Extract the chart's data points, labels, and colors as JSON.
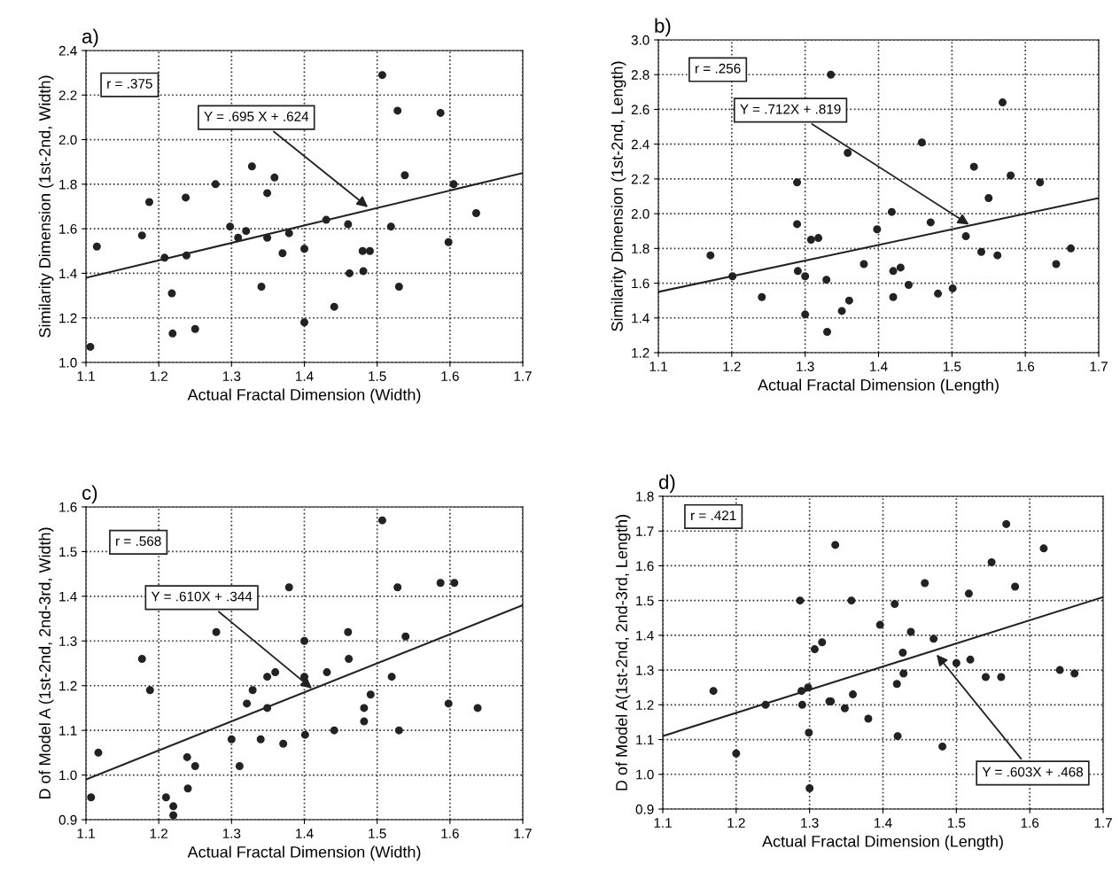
{
  "chart_data": [
    {
      "type": "scatter",
      "title": "a)",
      "xlabel": "Actual Fractal Dimension (Width)",
      "ylabel": "Similarity Dimension (1st-2nd, Width)",
      "xlim": [
        1.1,
        1.7
      ],
      "xticks": [
        1.1,
        1.2,
        1.3,
        1.4,
        1.5,
        1.6,
        1.7
      ],
      "ylim": [
        1.0,
        2.4
      ],
      "yticks": [
        {
          "value": 1.0,
          "label": "1.0"
        },
        1.2,
        1.4,
        1.6,
        1.8,
        {
          "value": 2.0,
          "label": "2.0"
        },
        2.2,
        2.4
      ],
      "grid": true,
      "series": [
        {
          "marker": "circle",
          "color": "#222222",
          "x": [
            1.106,
            1.115,
            1.177,
            1.187,
            1.208,
            1.218,
            1.219,
            1.238,
            1.237,
            1.25,
            1.278,
            1.298,
            1.309,
            1.32,
            1.328,
            1.341,
            1.349,
            1.349,
            1.359,
            1.37,
            1.379,
            1.4,
            1.4,
            1.43,
            1.441,
            1.46,
            1.462,
            1.48,
            1.49,
            1.481,
            1.507,
            1.519,
            1.528,
            1.53,
            1.538,
            1.587,
            1.598,
            1.605,
            1.636
          ],
          "values": [
            1.07,
            1.52,
            1.57,
            1.72,
            1.47,
            1.31,
            1.13,
            1.48,
            1.74,
            1.15,
            1.8,
            1.61,
            1.56,
            1.59,
            1.88,
            1.34,
            1.76,
            1.56,
            1.83,
            1.49,
            1.58,
            1.51,
            1.18,
            1.64,
            1.25,
            1.62,
            1.4,
            1.5,
            1.5,
            1.41,
            2.29,
            1.61,
            2.13,
            1.34,
            1.84,
            2.12,
            1.54,
            1.8,
            1.67
          ]
        },
        {
          "type": "line",
          "color": "#222222",
          "line_style": "solid",
          "x": [
            1.1,
            1.7
          ],
          "values": [
            1.38,
            1.85
          ]
        }
      ],
      "annotations": [
        "r = .375",
        {
          "text": "Y = .695 X + .624",
          "x": 1.49,
          "y": 1.69
        }
      ]
    },
    {
      "type": "scatter",
      "title": "b)",
      "xlabel": "Actual Fractal Dimension (Length)",
      "ylabel": "Similarity Dimension (1st-2nd, Length)",
      "xlim": [
        1.1,
        1.7
      ],
      "xticks": [
        1.1,
        1.2,
        1.3,
        1.4,
        1.5,
        1.6,
        1.7
      ],
      "ylim": [
        1.2,
        3.0
      ],
      "yticks": [
        1.2,
        1.4,
        1.6,
        1.8,
        {
          "value": 2.0,
          "label": "2.0"
        },
        2.2,
        2.4,
        2.6,
        2.8,
        {
          "value": 3.0,
          "label": "3.0"
        }
      ],
      "grid": true,
      "series": [
        {
          "marker": "circle",
          "color": "#222222",
          "x": [
            1.171,
            1.201,
            1.241,
            1.289,
            1.289,
            1.29,
            1.3,
            1.3,
            1.308,
            1.318,
            1.329,
            1.33,
            1.335,
            1.35,
            1.358,
            1.36,
            1.38,
            1.398,
            1.418,
            1.42,
            1.43,
            1.42,
            1.441,
            1.459,
            1.471,
            1.481,
            1.501,
            1.519,
            1.53,
            1.54,
            1.55,
            1.562,
            1.569,
            1.58,
            1.62,
            1.642,
            1.662
          ],
          "values": [
            1.76,
            1.64,
            1.52,
            2.18,
            1.94,
            1.67,
            1.64,
            1.42,
            1.85,
            1.86,
            1.62,
            1.32,
            2.8,
            1.44,
            2.35,
            1.5,
            1.71,
            1.91,
            2.01,
            1.67,
            1.69,
            1.52,
            1.59,
            2.41,
            1.95,
            1.54,
            1.57,
            1.87,
            2.27,
            1.78,
            2.09,
            1.76,
            2.64,
            2.22,
            2.18,
            1.71,
            1.8
          ]
        },
        {
          "type": "line",
          "color": "#222222",
          "line_style": "solid",
          "x": [
            1.1,
            1.7
          ],
          "values": [
            1.55,
            2.09
          ]
        }
      ],
      "annotations": [
        "r = .256",
        {
          "text": "Y = .712X + .819",
          "x": 1.526,
          "y": 1.93
        }
      ]
    },
    {
      "type": "scatter",
      "title": "c)",
      "xlabel": "Actual Fractal Dimension (Width)",
      "ylabel": "D of Model A (1st-2nd, 2nd-3rd, Width)",
      "xlim": [
        1.1,
        1.7
      ],
      "xticks": [
        1.1,
        1.2,
        1.3,
        1.4,
        1.5,
        1.6,
        1.7
      ],
      "ylim": [
        0.9,
        1.6
      ],
      "yticks": [
        0.9,
        {
          "value": 1.0,
          "label": "1.0"
        },
        1.1,
        1.2,
        1.3,
        1.4,
        1.5,
        1.6
      ],
      "grid": true,
      "series": [
        {
          "marker": "circle",
          "color": "#222222",
          "x": [
            1.107,
            1.117,
            1.177,
            1.188,
            1.21,
            1.22,
            1.22,
            1.239,
            1.24,
            1.25,
            1.279,
            1.3,
            1.311,
            1.321,
            1.329,
            1.34,
            1.349,
            1.349,
            1.36,
            1.371,
            1.379,
            1.4,
            1.4,
            1.401,
            1.431,
            1.441,
            1.46,
            1.461,
            1.482,
            1.482,
            1.491,
            1.507,
            1.52,
            1.528,
            1.53,
            1.539,
            1.587,
            1.606,
            1.598,
            1.638
          ],
          "values": [
            0.95,
            1.05,
            1.26,
            1.19,
            0.95,
            0.93,
            0.91,
            1.04,
            0.97,
            1.02,
            1.32,
            1.08,
            1.02,
            1.16,
            1.19,
            1.08,
            1.22,
            1.15,
            1.23,
            1.07,
            1.42,
            1.3,
            1.22,
            1.09,
            1.23,
            1.1,
            1.32,
            1.26,
            1.15,
            1.12,
            1.18,
            1.57,
            1.22,
            1.42,
            1.1,
            1.31,
            1.43,
            1.43,
            1.16,
            1.15
          ]
        },
        {
          "type": "line",
          "color": "#222222",
          "line_style": "solid",
          "x": [
            1.1,
            1.7
          ],
          "values": [
            0.99,
            1.38
          ]
        }
      ],
      "annotations": [
        "r = .568",
        {
          "text": "Y = .610X + .344",
          "x": 1.413,
          "y": 1.19
        }
      ]
    },
    {
      "type": "scatter",
      "title": "d)",
      "xlabel": "Actual Fractal Dimension (Length)",
      "ylabel": "D of Model A(1st-2nd, 2nd-3rd, Length)",
      "xlim": [
        1.1,
        1.7
      ],
      "xticks": [
        1.1,
        1.2,
        1.3,
        1.4,
        1.5,
        1.6,
        1.7
      ],
      "ylim": [
        0.9,
        1.8
      ],
      "yticks": [
        0.9,
        {
          "value": 1.0,
          "label": "1.0"
        },
        1.1,
        1.2,
        1.3,
        1.4,
        1.5,
        1.6,
        1.7,
        1.8
      ],
      "grid": true,
      "series": [
        {
          "marker": "circle",
          "color": "#222222",
          "x": [
            1.169,
            1.2,
            1.24,
            1.287,
            1.289,
            1.29,
            1.298,
            1.299,
            1.3,
            1.307,
            1.317,
            1.327,
            1.329,
            1.335,
            1.348,
            1.357,
            1.359,
            1.38,
            1.396,
            1.416,
            1.419,
            1.42,
            1.427,
            1.428,
            1.438,
            1.457,
            1.469,
            1.481,
            1.5,
            1.519,
            1.517,
            1.54,
            1.548,
            1.561,
            1.568,
            1.58,
            1.619,
            1.641,
            1.661
          ],
          "values": [
            1.24,
            1.06,
            1.2,
            1.5,
            1.24,
            1.2,
            1.25,
            1.12,
            0.96,
            1.36,
            1.38,
            1.21,
            1.21,
            1.66,
            1.19,
            1.5,
            1.23,
            1.16,
            1.43,
            1.49,
            1.26,
            1.11,
            1.35,
            1.29,
            1.41,
            1.55,
            1.39,
            1.08,
            1.32,
            1.33,
            1.52,
            1.28,
            1.61,
            1.28,
            1.72,
            1.54,
            1.65,
            1.3,
            1.29
          ]
        },
        {
          "type": "line",
          "color": "#222222",
          "line_style": "solid",
          "x": [
            1.1,
            1.7
          ],
          "values": [
            1.11,
            1.51
          ]
        }
      ],
      "annotations": [
        "r = .421",
        {
          "text": "Y = .603X + .468",
          "x": 1.471,
          "y": 1.35
        }
      ]
    }
  ]
}
